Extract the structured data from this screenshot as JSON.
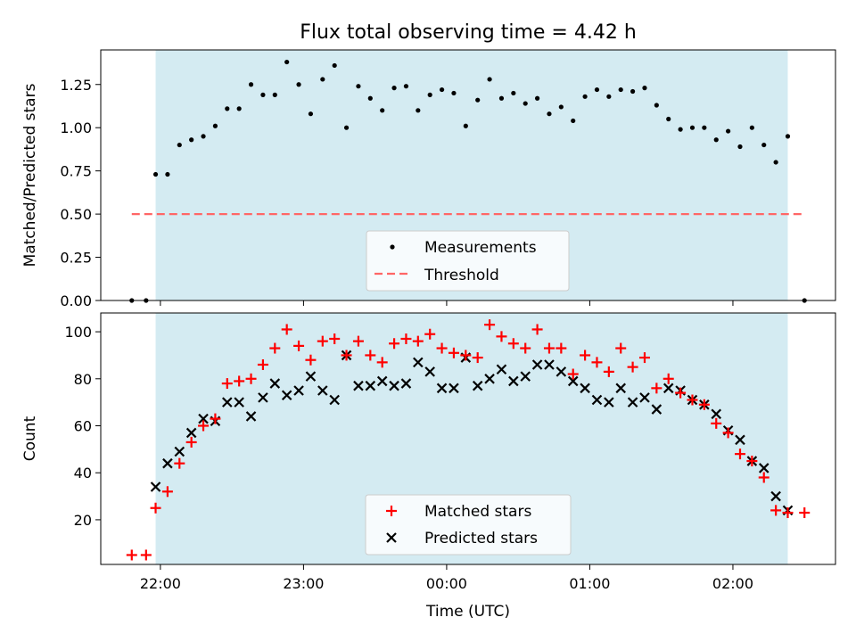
{
  "figure": {
    "title": "Flux total observing time = 4.42 h"
  },
  "colors": {
    "shade": "#add8e6",
    "threshold": "#ff6666",
    "matched": "#ff0000",
    "predicted": "#000000",
    "measure": "#000000"
  },
  "chart_data": [
    {
      "type": "scatter",
      "panel": "top",
      "title": "Flux total observing time = 4.42 h",
      "xlabel": "",
      "ylabel": "Matched/Predicted stars",
      "ylim": [
        0,
        1.45
      ],
      "yticks": [
        "0.00",
        "0.25",
        "0.50",
        "0.75",
        "1.00",
        "1.25"
      ],
      "x_unit": "minutes relative to 22:00 UTC",
      "xlim": [
        -25,
        283
      ],
      "shaded_span": [
        -2,
        263
      ],
      "threshold": {
        "value": 0.5,
        "xrange": [
          -12,
          270
        ]
      },
      "legend": {
        "position": "lower center",
        "entries": [
          "Measurements",
          "Threshold"
        ]
      },
      "series": [
        {
          "name": "Measurements",
          "points": [
            [
              -12,
              0.0
            ],
            [
              -6,
              0.0
            ],
            [
              -2,
              0.73
            ],
            [
              3,
              0.73
            ],
            [
              8,
              0.9
            ],
            [
              13,
              0.93
            ],
            [
              18,
              0.95
            ],
            [
              23,
              1.01
            ],
            [
              28,
              1.11
            ],
            [
              33,
              1.11
            ],
            [
              38,
              1.25
            ],
            [
              43,
              1.19
            ],
            [
              48,
              1.19
            ],
            [
              53,
              1.38
            ],
            [
              58,
              1.25
            ],
            [
              63,
              1.08
            ],
            [
              68,
              1.28
            ],
            [
              73,
              1.36
            ],
            [
              78,
              1.0
            ],
            [
              83,
              1.24
            ],
            [
              88,
              1.17
            ],
            [
              93,
              1.1
            ],
            [
              98,
              1.23
            ],
            [
              103,
              1.24
            ],
            [
              108,
              1.1
            ],
            [
              113,
              1.19
            ],
            [
              118,
              1.22
            ],
            [
              123,
              1.2
            ],
            [
              128,
              1.01
            ],
            [
              133,
              1.16
            ],
            [
              138,
              1.28
            ],
            [
              143,
              1.17
            ],
            [
              148,
              1.2
            ],
            [
              153,
              1.14
            ],
            [
              158,
              1.17
            ],
            [
              163,
              1.08
            ],
            [
              168,
              1.12
            ],
            [
              173,
              1.04
            ],
            [
              178,
              1.18
            ],
            [
              183,
              1.22
            ],
            [
              188,
              1.18
            ],
            [
              193,
              1.22
            ],
            [
              198,
              1.21
            ],
            [
              203,
              1.23
            ],
            [
              208,
              1.13
            ],
            [
              213,
              1.05
            ],
            [
              218,
              0.99
            ],
            [
              223,
              1.0
            ],
            [
              228,
              1.0
            ],
            [
              233,
              0.93
            ],
            [
              238,
              0.98
            ],
            [
              243,
              0.89
            ],
            [
              248,
              1.0
            ],
            [
              253,
              0.9
            ],
            [
              258,
              0.8
            ],
            [
              263,
              0.95
            ],
            [
              270,
              0.0
            ]
          ]
        }
      ]
    },
    {
      "type": "scatter",
      "panel": "bottom",
      "xlabel": "Time (UTC)",
      "ylabel": "Count",
      "ylim": [
        1,
        108
      ],
      "yticks": [
        "20",
        "40",
        "60",
        "80",
        "100"
      ],
      "xticks": [
        {
          "value": 0,
          "label": "22:00"
        },
        {
          "value": 60,
          "label": "23:00"
        },
        {
          "value": 120,
          "label": "00:00"
        },
        {
          "value": 180,
          "label": "01:00"
        },
        {
          "value": 240,
          "label": "02:00"
        }
      ],
      "x_unit": "minutes relative to 22:00 UTC",
      "xlim": [
        -25,
        283
      ],
      "shaded_span": [
        -2,
        263
      ],
      "legend": {
        "position": "lower center",
        "entries": [
          "Matched stars",
          "Predicted stars"
        ]
      },
      "series": [
        {
          "name": "Matched stars",
          "marker": "plus",
          "points": [
            [
              -12,
              5
            ],
            [
              -6,
              5
            ],
            [
              -2,
              25
            ],
            [
              3,
              32
            ],
            [
              8,
              44
            ],
            [
              13,
              53
            ],
            [
              18,
              60
            ],
            [
              23,
              63
            ],
            [
              28,
              78
            ],
            [
              33,
              79
            ],
            [
              38,
              80
            ],
            [
              43,
              86
            ],
            [
              48,
              93
            ],
            [
              53,
              101
            ],
            [
              58,
              94
            ],
            [
              63,
              88
            ],
            [
              68,
              96
            ],
            [
              73,
              97
            ],
            [
              78,
              90
            ],
            [
              83,
              96
            ],
            [
              88,
              90
            ],
            [
              93,
              87
            ],
            [
              98,
              95
            ],
            [
              103,
              97
            ],
            [
              108,
              96
            ],
            [
              113,
              99
            ],
            [
              118,
              93
            ],
            [
              123,
              91
            ],
            [
              128,
              90
            ],
            [
              133,
              89
            ],
            [
              138,
              103
            ],
            [
              143,
              98
            ],
            [
              148,
              95
            ],
            [
              153,
              93
            ],
            [
              158,
              101
            ],
            [
              163,
              93
            ],
            [
              168,
              93
            ],
            [
              173,
              82
            ],
            [
              178,
              90
            ],
            [
              183,
              87
            ],
            [
              188,
              83
            ],
            [
              193,
              93
            ],
            [
              198,
              85
            ],
            [
              203,
              89
            ],
            [
              208,
              76
            ],
            [
              213,
              80
            ],
            [
              218,
              74
            ],
            [
              223,
              71
            ],
            [
              228,
              69
            ],
            [
              233,
              61
            ],
            [
              238,
              57
            ],
            [
              243,
              48
            ],
            [
              248,
              45
            ],
            [
              253,
              38
            ],
            [
              258,
              24
            ],
            [
              263,
              23
            ],
            [
              270,
              23
            ]
          ]
        },
        {
          "name": "Predicted stars",
          "marker": "x",
          "points": [
            [
              -2,
              34
            ],
            [
              3,
              44
            ],
            [
              8,
              49
            ],
            [
              13,
              57
            ],
            [
              18,
              63
            ],
            [
              23,
              62
            ],
            [
              28,
              70
            ],
            [
              33,
              70
            ],
            [
              38,
              64
            ],
            [
              43,
              72
            ],
            [
              48,
              78
            ],
            [
              53,
              73
            ],
            [
              58,
              75
            ],
            [
              63,
              81
            ],
            [
              68,
              75
            ],
            [
              73,
              71
            ],
            [
              78,
              90
            ],
            [
              83,
              77
            ],
            [
              88,
              77
            ],
            [
              93,
              79
            ],
            [
              98,
              77
            ],
            [
              103,
              78
            ],
            [
              108,
              87
            ],
            [
              113,
              83
            ],
            [
              118,
              76
            ],
            [
              123,
              76
            ],
            [
              128,
              89
            ],
            [
              133,
              77
            ],
            [
              138,
              80
            ],
            [
              143,
              84
            ],
            [
              148,
              79
            ],
            [
              153,
              81
            ],
            [
              158,
              86
            ],
            [
              163,
              86
            ],
            [
              168,
              83
            ],
            [
              173,
              79
            ],
            [
              178,
              76
            ],
            [
              183,
              71
            ],
            [
              188,
              70
            ],
            [
              193,
              76
            ],
            [
              198,
              70
            ],
            [
              203,
              72
            ],
            [
              208,
              67
            ],
            [
              213,
              76
            ],
            [
              218,
              75
            ],
            [
              223,
              71
            ],
            [
              228,
              69
            ],
            [
              233,
              65
            ],
            [
              238,
              58
            ],
            [
              243,
              54
            ],
            [
              248,
              45
            ],
            [
              253,
              42
            ],
            [
              258,
              30
            ],
            [
              263,
              24
            ]
          ]
        }
      ]
    }
  ]
}
